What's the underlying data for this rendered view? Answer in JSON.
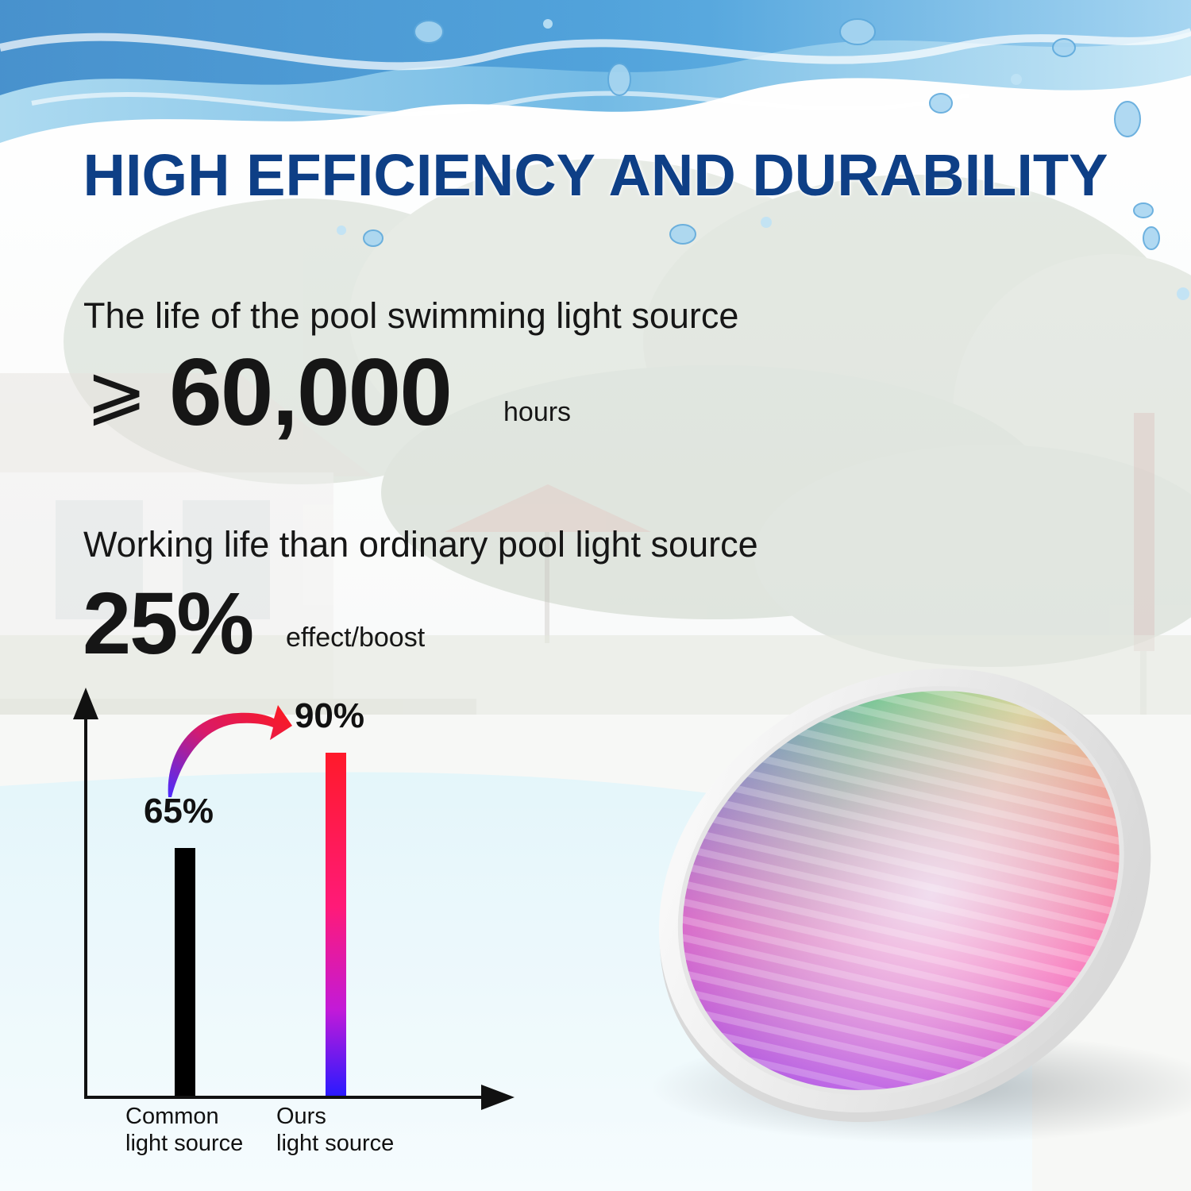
{
  "title": "HIGH EFFICIENCY AND DURABILITY",
  "life": {
    "label": "The life of the pool swimming light source",
    "prefix": "⩾",
    "value": "60,000",
    "unit": "hours"
  },
  "working": {
    "label": "Working life than ordinary pool light source",
    "value": "25%",
    "unit": "effect/boost"
  },
  "colors": {
    "title": "#0e3f86",
    "common_bar": "#000000",
    "ours_bar_top": "#ff1a2a",
    "ours_bar_bottom": "#2a1aff"
  },
  "chart_data": {
    "type": "bar",
    "categories": [
      "Common\nlight source",
      "Ours\nlight source"
    ],
    "values": [
      65,
      90
    ],
    "value_labels": [
      "65%",
      "90%"
    ],
    "ylim": [
      0,
      100
    ],
    "grid": false,
    "legend": "none"
  }
}
